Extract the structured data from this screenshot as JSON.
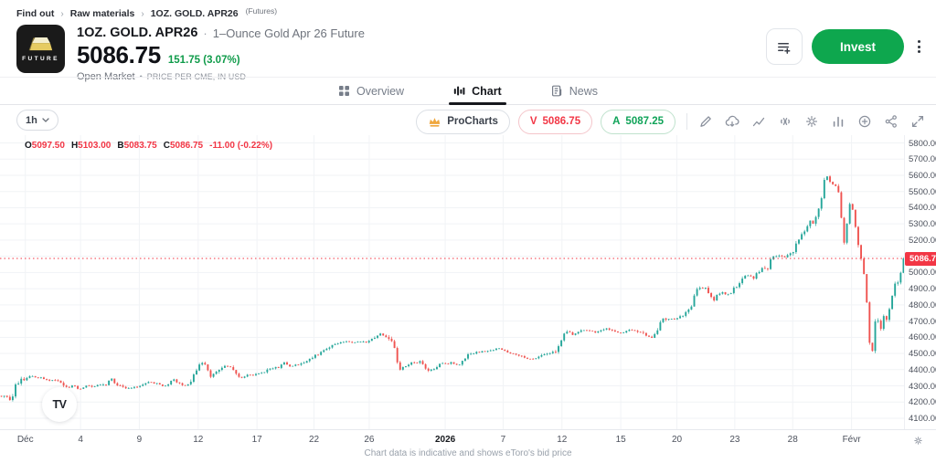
{
  "breadcrumb": {
    "items": [
      "Find out",
      "Raw materials",
      "1OZ. GOLD. APR26"
    ],
    "suffix": "(Futures)"
  },
  "header": {
    "logo_text": "FUTURE",
    "title": "1OZ. GOLD. APR26",
    "title_separator": "·",
    "subtitle": "1–Ounce Gold Apr 26 Future",
    "price": "5086.75",
    "change": "151.75 (3.07%)",
    "market_status": "Open Market",
    "market_dot": "•",
    "price_note": "PRICE PER CME, IN USD",
    "invest_label": "Invest",
    "accent_green": "#0ea74e"
  },
  "tabs": [
    {
      "label": "Overview",
      "active": false
    },
    {
      "label": "Chart",
      "active": true
    },
    {
      "label": "News",
      "active": false
    }
  ],
  "toolbar": {
    "timeframe": "1h",
    "procharts_label": "ProCharts",
    "bid_label": "V",
    "bid_value": "5086.75",
    "ask_label": "A",
    "ask_value": "5087.25",
    "icons": [
      "draw-icon",
      "cloud-icon",
      "trend-line-icon",
      "volume-icon",
      "gear-icon",
      "chart-style-icon",
      "add-circle-icon",
      "share-icon",
      "fullscreen-icon"
    ]
  },
  "chart_data": {
    "type": "candlestick",
    "legend": {
      "open_label": "O",
      "open": "5097.50",
      "high_label": "H",
      "high": "5103.00",
      "low_label": "B",
      "low": "5083.75",
      "close_label": "C",
      "close": "5086.75",
      "change": "-11.00 (-0.22%)"
    },
    "last_price": 5086.75,
    "last_price_label": "5086.75",
    "y_axis": {
      "min": 4100,
      "max": 5800,
      "step": 100
    },
    "x_ticks": [
      {
        "label": "Déc",
        "pos": 0.028,
        "bold": false
      },
      {
        "label": "4",
        "pos": 0.089,
        "bold": false
      },
      {
        "label": "9",
        "pos": 0.154,
        "bold": false
      },
      {
        "label": "12",
        "pos": 0.219,
        "bold": false
      },
      {
        "label": "17",
        "pos": 0.284,
        "bold": false
      },
      {
        "label": "22",
        "pos": 0.347,
        "bold": false
      },
      {
        "label": "26",
        "pos": 0.408,
        "bold": false
      },
      {
        "label": "2026",
        "pos": 0.492,
        "bold": true
      },
      {
        "label": "7",
        "pos": 0.556,
        "bold": false
      },
      {
        "label": "12",
        "pos": 0.621,
        "bold": false
      },
      {
        "label": "15",
        "pos": 0.686,
        "bold": false
      },
      {
        "label": "20",
        "pos": 0.748,
        "bold": false
      },
      {
        "label": "23",
        "pos": 0.812,
        "bold": false
      },
      {
        "label": "28",
        "pos": 0.876,
        "bold": false
      },
      {
        "label": "Févr",
        "pos": 0.941,
        "bold": false
      }
    ],
    "colors": {
      "up": "#26a69a",
      "down": "#ef5350",
      "price_line": "#f23645",
      "grid": "#f1f3f6"
    },
    "price_path": [
      [
        0.0,
        4238
      ],
      [
        0.01,
        4232
      ],
      [
        0.014,
        4190
      ],
      [
        0.018,
        4298
      ],
      [
        0.024,
        4338
      ],
      [
        0.031,
        4345
      ],
      [
        0.036,
        4364
      ],
      [
        0.042,
        4352
      ],
      [
        0.05,
        4346
      ],
      [
        0.058,
        4331
      ],
      [
        0.064,
        4340
      ],
      [
        0.071,
        4312
      ],
      [
        0.077,
        4286
      ],
      [
        0.083,
        4305
      ],
      [
        0.089,
        4277
      ],
      [
        0.096,
        4300
      ],
      [
        0.104,
        4296
      ],
      [
        0.112,
        4309
      ],
      [
        0.119,
        4300
      ],
      [
        0.124,
        4354
      ],
      [
        0.129,
        4311
      ],
      [
        0.136,
        4300
      ],
      [
        0.142,
        4286
      ],
      [
        0.15,
        4292
      ],
      [
        0.158,
        4301
      ],
      [
        0.165,
        4327
      ],
      [
        0.172,
        4318
      ],
      [
        0.18,
        4301
      ],
      [
        0.188,
        4308
      ],
      [
        0.192,
        4344
      ],
      [
        0.198,
        4318
      ],
      [
        0.205,
        4296
      ],
      [
        0.212,
        4330
      ],
      [
        0.218,
        4397
      ],
      [
        0.224,
        4438
      ],
      [
        0.229,
        4431
      ],
      [
        0.234,
        4353
      ],
      [
        0.24,
        4386
      ],
      [
        0.246,
        4414
      ],
      [
        0.253,
        4424
      ],
      [
        0.259,
        4399
      ],
      [
        0.265,
        4353
      ],
      [
        0.272,
        4356
      ],
      [
        0.277,
        4371
      ],
      [
        0.283,
        4366
      ],
      [
        0.29,
        4381
      ],
      [
        0.297,
        4397
      ],
      [
        0.304,
        4411
      ],
      [
        0.311,
        4419
      ],
      [
        0.316,
        4446
      ],
      [
        0.32,
        4421
      ],
      [
        0.327,
        4428
      ],
      [
        0.333,
        4431
      ],
      [
        0.339,
        4441
      ],
      [
        0.345,
        4477
      ],
      [
        0.352,
        4491
      ],
      [
        0.358,
        4507
      ],
      [
        0.365,
        4543
      ],
      [
        0.372,
        4557
      ],
      [
        0.378,
        4569
      ],
      [
        0.385,
        4574
      ],
      [
        0.392,
        4567
      ],
      [
        0.398,
        4577
      ],
      [
        0.405,
        4567
      ],
      [
        0.411,
        4587
      ],
      [
        0.417,
        4599
      ],
      [
        0.422,
        4624
      ],
      [
        0.427,
        4607
      ],
      [
        0.432,
        4597
      ],
      [
        0.436,
        4559
      ],
      [
        0.44,
        4468
      ],
      [
        0.443,
        4391
      ],
      [
        0.449,
        4421
      ],
      [
        0.455,
        4444
      ],
      [
        0.461,
        4437
      ],
      [
        0.466,
        4449
      ],
      [
        0.471,
        4411
      ],
      [
        0.477,
        4394
      ],
      [
        0.483,
        4414
      ],
      [
        0.489,
        4437
      ],
      [
        0.495,
        4431
      ],
      [
        0.501,
        4447
      ],
      [
        0.507,
        4424
      ],
      [
        0.513,
        4451
      ],
      [
        0.519,
        4491
      ],
      [
        0.525,
        4501
      ],
      [
        0.532,
        4511
      ],
      [
        0.539,
        4511
      ],
      [
        0.546,
        4521
      ],
      [
        0.553,
        4531
      ],
      [
        0.559,
        4519
      ],
      [
        0.565,
        4507
      ],
      [
        0.572,
        4491
      ],
      [
        0.578,
        4479
      ],
      [
        0.585,
        4469
      ],
      [
        0.592,
        4461
      ],
      [
        0.598,
        4481
      ],
      [
        0.604,
        4497
      ],
      [
        0.611,
        4507
      ],
      [
        0.617,
        4519
      ],
      [
        0.621,
        4558
      ],
      [
        0.625,
        4621
      ],
      [
        0.63,
        4629
      ],
      [
        0.635,
        4614
      ],
      [
        0.641,
        4631
      ],
      [
        0.647,
        4647
      ],
      [
        0.653,
        4639
      ],
      [
        0.66,
        4629
      ],
      [
        0.666,
        4647
      ],
      [
        0.672,
        4657
      ],
      [
        0.678,
        4639
      ],
      [
        0.684,
        4625
      ],
      [
        0.69,
        4631
      ],
      [
        0.696,
        4647
      ],
      [
        0.702,
        4643
      ],
      [
        0.708,
        4631
      ],
      [
        0.714,
        4623
      ],
      [
        0.719,
        4599
      ],
      [
        0.723,
        4591
      ],
      [
        0.728,
        4639
      ],
      [
        0.732,
        4704
      ],
      [
        0.738,
        4711
      ],
      [
        0.744,
        4711
      ],
      [
        0.751,
        4721
      ],
      [
        0.756,
        4734
      ],
      [
        0.761,
        4754
      ],
      [
        0.765,
        4774
      ],
      [
        0.769,
        4871
      ],
      [
        0.773,
        4901
      ],
      [
        0.778,
        4897
      ],
      [
        0.782,
        4901
      ],
      [
        0.786,
        4864
      ],
      [
        0.79,
        4821
      ],
      [
        0.794,
        4861
      ],
      [
        0.799,
        4877
      ],
      [
        0.804,
        4864
      ],
      [
        0.808,
        4867
      ],
      [
        0.813,
        4901
      ],
      [
        0.818,
        4931
      ],
      [
        0.822,
        4957
      ],
      [
        0.826,
        4977
      ],
      [
        0.83,
        4991
      ],
      [
        0.834,
        4957
      ],
      [
        0.838,
        4994
      ],
      [
        0.842,
        5017
      ],
      [
        0.846,
        5027
      ],
      [
        0.85,
        5021
      ],
      [
        0.854,
        5087
      ],
      [
        0.859,
        5095
      ],
      [
        0.864,
        5107
      ],
      [
        0.869,
        5097
      ],
      [
        0.874,
        5107
      ],
      [
        0.878,
        5131
      ],
      [
        0.881,
        5184
      ],
      [
        0.885,
        5214
      ],
      [
        0.889,
        5247
      ],
      [
        0.893,
        5287
      ],
      [
        0.896,
        5317
      ],
      [
        0.9,
        5294
      ],
      [
        0.903,
        5341
      ],
      [
        0.906,
        5391
      ],
      [
        0.909,
        5441
      ],
      [
        0.912,
        5554
      ],
      [
        0.915,
        5604
      ],
      [
        0.918,
        5571
      ],
      [
        0.921,
        5547
      ],
      [
        0.924,
        5551
      ],
      [
        0.927,
        5511
      ],
      [
        0.929,
        5494
      ],
      [
        0.931,
        5359
      ],
      [
        0.933,
        5254
      ],
      [
        0.935,
        5164
      ],
      [
        0.937,
        5284
      ],
      [
        0.939,
        5384
      ],
      [
        0.941,
        5437
      ],
      [
        0.943,
        5414
      ],
      [
        0.945,
        5347
      ],
      [
        0.947,
        5281
      ],
      [
        0.949,
        5197
      ],
      [
        0.951,
        5147
      ],
      [
        0.953,
        5091
      ],
      [
        0.955,
        5044
      ],
      [
        0.957,
        4944
      ],
      [
        0.959,
        4844
      ],
      [
        0.961,
        4694
      ],
      [
        0.963,
        4527
      ],
      [
        0.965,
        4471
      ],
      [
        0.967,
        4647
      ],
      [
        0.969,
        4704
      ],
      [
        0.971,
        4721
      ],
      [
        0.973,
        4681
      ],
      [
        0.975,
        4651
      ],
      [
        0.977,
        4704
      ],
      [
        0.979,
        4751
      ],
      [
        0.981,
        4701
      ],
      [
        0.983,
        4721
      ],
      [
        0.985,
        4797
      ],
      [
        0.987,
        4851
      ],
      [
        0.989,
        4901
      ],
      [
        0.991,
        4947
      ],
      [
        0.993,
        4931
      ],
      [
        0.995,
        4967
      ],
      [
        0.997,
        5011
      ],
      [
        0.9985,
        5061
      ],
      [
        1.0,
        5086.75
      ]
    ]
  },
  "footer": {
    "note": "Chart data is indicative and shows eToro's bid price"
  }
}
